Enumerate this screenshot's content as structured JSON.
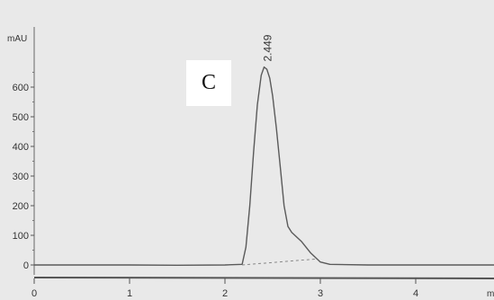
{
  "chart_data": {
    "type": "line",
    "title": "",
    "xlabel": "min",
    "ylabel": "mAU",
    "xlim": [
      0,
      5.2
    ],
    "ylim": [
      -25,
      760
    ],
    "x_ticks": [
      0,
      1,
      2,
      3,
      4
    ],
    "y_ticks": [
      0,
      100,
      200,
      300,
      400,
      500,
      600
    ],
    "panel_label": "C",
    "peak": {
      "retention_time": "2.449",
      "x": 2.449,
      "y": 668
    },
    "series": [
      {
        "x": [
          0,
          0.5,
          1.0,
          1.5,
          2.0,
          2.18,
          2.22,
          2.26,
          2.3,
          2.34,
          2.38,
          2.41,
          2.44,
          2.47,
          2.5,
          2.54,
          2.58,
          2.62,
          2.66,
          2.7,
          2.8,
          2.9,
          3.0,
          3.1,
          3.5,
          4.0,
          4.5,
          5.0,
          5.2
        ],
        "y": [
          0,
          0,
          0,
          -1,
          0,
          2,
          60,
          200,
          380,
          540,
          640,
          668,
          660,
          630,
          570,
          460,
          330,
          200,
          130,
          110,
          80,
          40,
          10,
          2,
          0,
          0,
          0,
          0,
          0
        ]
      }
    ],
    "baseline": {
      "x": [
        2.18,
        2.95
      ],
      "y": [
        0,
        20
      ]
    }
  }
}
